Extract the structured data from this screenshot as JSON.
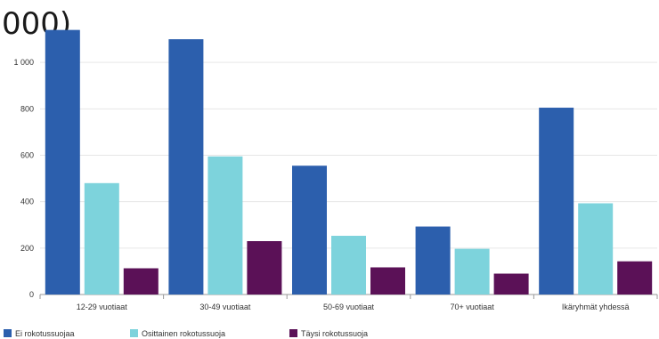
{
  "chart_data": {
    "type": "bar",
    "title_fragment": "000)",
    "categories": [
      "12-29 vuotiaat",
      "30-49 vuotiaat",
      "50-69 vuotiaat",
      "70+ vuotiaat",
      "Ikäryhmät yhdessä"
    ],
    "series": [
      {
        "name": "Ei rokotussuojaa",
        "color": "#2c5fad",
        "values": [
          1140,
          1100,
          555,
          293,
          805
        ]
      },
      {
        "name": "Osittainen rokotussuoja",
        "color": "#7dd3dc",
        "values": [
          480,
          595,
          253,
          197,
          393
        ]
      },
      {
        "name": "Täysi rokotussuoja",
        "color": "#5b1157",
        "values": [
          113,
          230,
          117,
          90,
          143
        ]
      }
    ],
    "yticks": [
      "0",
      "200",
      "400",
      "600",
      "800",
      "1 000"
    ],
    "ylim": [
      0,
      1200
    ],
    "grid": true,
    "legend": "bottom-left"
  }
}
